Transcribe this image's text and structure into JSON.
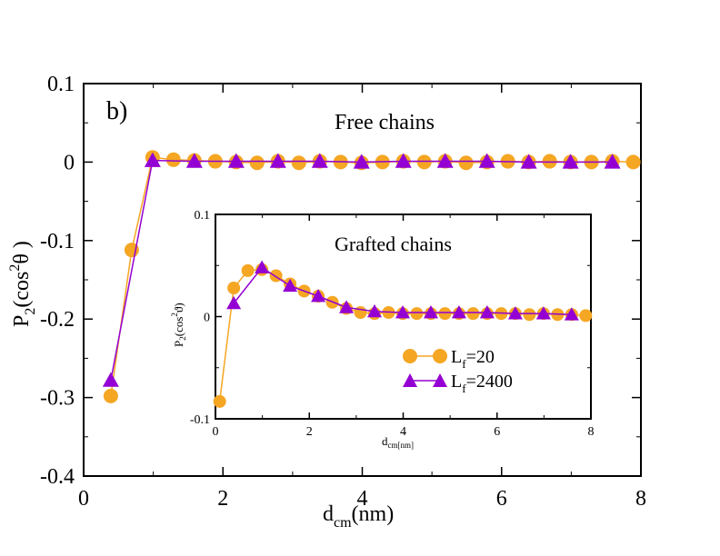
{
  "chart_data": [
    {
      "type": "line",
      "panel": "main",
      "panel_label": "b)",
      "annotation": "Free chains",
      "xlabel_main": "d",
      "xlabel_sub": "cm",
      "xlabel_unit": "(nm)",
      "ylabel_main": "P",
      "ylabel_sub": "2",
      "ylabel_paren_open": "(cos",
      "ylabel_sup": "2",
      "ylabel_tail": "θ )",
      "xlim": [
        0,
        8
      ],
      "ylim": [
        -0.4,
        0.1
      ],
      "xticks": [
        0,
        2,
        4,
        6,
        8
      ],
      "xtick_labels": [
        "0",
        "2",
        "4",
        "6",
        "8"
      ],
      "yticks": [
        -0.4,
        -0.3,
        -0.2,
        -0.1,
        0,
        0.1
      ],
      "ytick_labels": [
        "-0.4",
        "-0.3",
        "-0.2",
        "-0.1",
        "0",
        "0.1"
      ],
      "series": [
        {
          "name": "L_f=20",
          "color": "#f5a623",
          "marker": "circle",
          "x": [
            0.39,
            0.69,
            0.99,
            1.29,
            1.59,
            1.89,
            2.19,
            2.49,
            2.79,
            3.09,
            3.39,
            3.69,
            3.99,
            4.29,
            4.59,
            4.89,
            5.19,
            5.49,
            5.79,
            6.09,
            6.39,
            6.69,
            6.99,
            7.29,
            7.59,
            7.89
          ],
          "y": [
            -0.298,
            -0.112,
            0.006,
            0.003,
            0.002,
            0.001,
            0.0,
            -0.001,
            0.001,
            -0.001,
            0.001,
            0.0,
            -0.001,
            0.0,
            0.001,
            0.0,
            0.001,
            -0.001,
            0.0,
            0.001,
            0.0,
            0.001,
            0.0,
            0.0,
            0.001,
            0.0
          ]
        },
        {
          "name": "L_f=2400",
          "color": "#9400d3",
          "marker": "triangle",
          "x": [
            0.39,
            0.99,
            1.59,
            2.19,
            2.79,
            3.39,
            3.99,
            4.59,
            5.19,
            5.79,
            6.39,
            6.99,
            7.59
          ],
          "y": [
            -0.278,
            0.002,
            0.001,
            0.001,
            0.001,
            0.001,
            0.0,
            0.001,
            0.001,
            0.001,
            0.0,
            0.0,
            0.0
          ]
        }
      ]
    },
    {
      "type": "line",
      "panel": "inset",
      "annotation": "Grafted chains",
      "xlabel_main": "d",
      "xlabel_sub": "cm[nm]",
      "ylabel_main": "P",
      "ylabel_sub": "2",
      "ylabel_paren_open": "(cos",
      "ylabel_sup": "2",
      "ylabel_tail": "ϑ)",
      "xlim": [
        0,
        8
      ],
      "ylim": [
        -0.1,
        0.1
      ],
      "xticks": [
        0,
        2,
        4,
        6,
        8
      ],
      "xtick_labels": [
        "0",
        "2",
        "4",
        "6",
        "8"
      ],
      "yticks": [
        -0.1,
        0,
        0.1
      ],
      "ytick_labels": [
        "-0.1",
        "0",
        "0.1"
      ],
      "legend_position": "lower-right",
      "legend": [
        {
          "label_main": "L",
          "label_sub": "f",
          "label_rest": "=20"
        },
        {
          "label_main": "L",
          "label_sub": "f",
          "label_rest": "=2400"
        }
      ],
      "series": [
        {
          "name": "L_f=20",
          "color": "#f5a623",
          "marker": "circle",
          "x": [
            0.09,
            0.39,
            0.69,
            0.99,
            1.29,
            1.59,
            1.89,
            2.19,
            2.49,
            2.79,
            3.09,
            3.39,
            3.69,
            3.99,
            4.29,
            4.59,
            4.89,
            5.19,
            5.49,
            5.79,
            6.09,
            6.39,
            6.69,
            6.99,
            7.29,
            7.59,
            7.89
          ],
          "y": [
            -0.083,
            0.028,
            0.045,
            0.046,
            0.04,
            0.032,
            0.025,
            0.02,
            0.014,
            0.008,
            0.004,
            0.003,
            0.004,
            0.003,
            0.003,
            0.003,
            0.003,
            0.003,
            0.003,
            0.003,
            0.003,
            0.003,
            0.002,
            0.003,
            0.002,
            0.002,
            0.001
          ]
        },
        {
          "name": "L_f=2400",
          "color": "#9400d3",
          "marker": "triangle",
          "x": [
            0.39,
            0.99,
            1.59,
            2.19,
            2.79,
            3.39,
            3.99,
            4.59,
            5.19,
            5.79,
            6.39,
            6.99,
            7.59
          ],
          "y": [
            0.013,
            0.048,
            0.03,
            0.02,
            0.009,
            0.005,
            0.004,
            0.004,
            0.004,
            0.004,
            0.003,
            0.003,
            0.002
          ]
        }
      ]
    }
  ]
}
